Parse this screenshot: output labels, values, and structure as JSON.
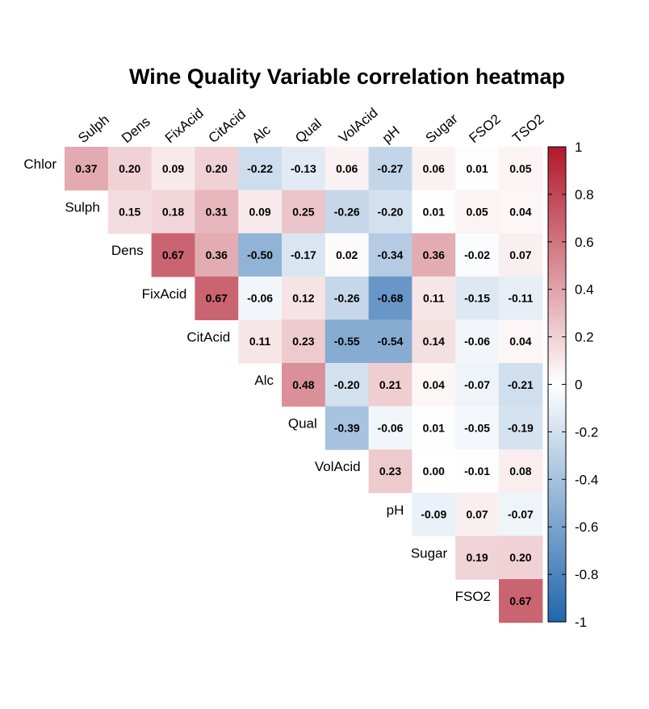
{
  "chart_data": {
    "type": "heatmap",
    "title": "Wine Quality Variable correlation heatmap",
    "col_labels": [
      "Sulph",
      "Dens",
      "FixAcid",
      "CitAcid",
      "Alc",
      "Qual",
      "VolAcid",
      "pH",
      "Sugar",
      "FSO2",
      "TSO2"
    ],
    "row_labels": [
      "Chlor",
      "Sulph",
      "Dens",
      "FixAcid",
      "CitAcid",
      "Alc",
      "Qual",
      "VolAcid",
      "pH",
      "Sugar",
      "FSO2"
    ],
    "values": [
      [
        0.37,
        0.2,
        0.09,
        0.2,
        -0.22,
        -0.13,
        0.06,
        -0.27,
        0.06,
        0.01,
        0.05
      ],
      [
        null,
        0.15,
        0.18,
        0.31,
        0.09,
        0.25,
        -0.26,
        -0.2,
        0.01,
        0.05,
        0.04
      ],
      [
        null,
        null,
        0.67,
        0.36,
        -0.5,
        -0.17,
        0.02,
        -0.34,
        0.36,
        -0.02,
        0.07
      ],
      [
        null,
        null,
        null,
        0.67,
        -0.06,
        0.12,
        -0.26,
        -0.68,
        0.11,
        -0.15,
        -0.11
      ],
      [
        null,
        null,
        null,
        null,
        0.11,
        0.23,
        -0.55,
        -0.54,
        0.14,
        -0.06,
        0.04
      ],
      [
        null,
        null,
        null,
        null,
        null,
        0.48,
        -0.2,
        0.21,
        0.04,
        -0.07,
        -0.21
      ],
      [
        null,
        null,
        null,
        null,
        null,
        null,
        -0.39,
        -0.06,
        0.01,
        -0.05,
        -0.19
      ],
      [
        null,
        null,
        null,
        null,
        null,
        null,
        null,
        0.23,
        0.0,
        -0.01,
        0.08
      ],
      [
        null,
        null,
        null,
        null,
        null,
        null,
        null,
        null,
        -0.09,
        0.07,
        -0.07
      ],
      [
        null,
        null,
        null,
        null,
        null,
        null,
        null,
        null,
        null,
        0.19,
        0.2
      ],
      [
        null,
        null,
        null,
        null,
        null,
        null,
        null,
        null,
        null,
        null,
        0.67
      ]
    ],
    "color_scale": {
      "min": -1,
      "max": 1,
      "low_color": "#2166ac",
      "mid_color": "#ffffff",
      "high_color": "#b2182b",
      "ticks": [
        1,
        0.8,
        0.6,
        0.4,
        0.2,
        0,
        -0.2,
        -0.4,
        -0.6,
        -0.8,
        -1
      ]
    },
    "legend_position": "right"
  }
}
